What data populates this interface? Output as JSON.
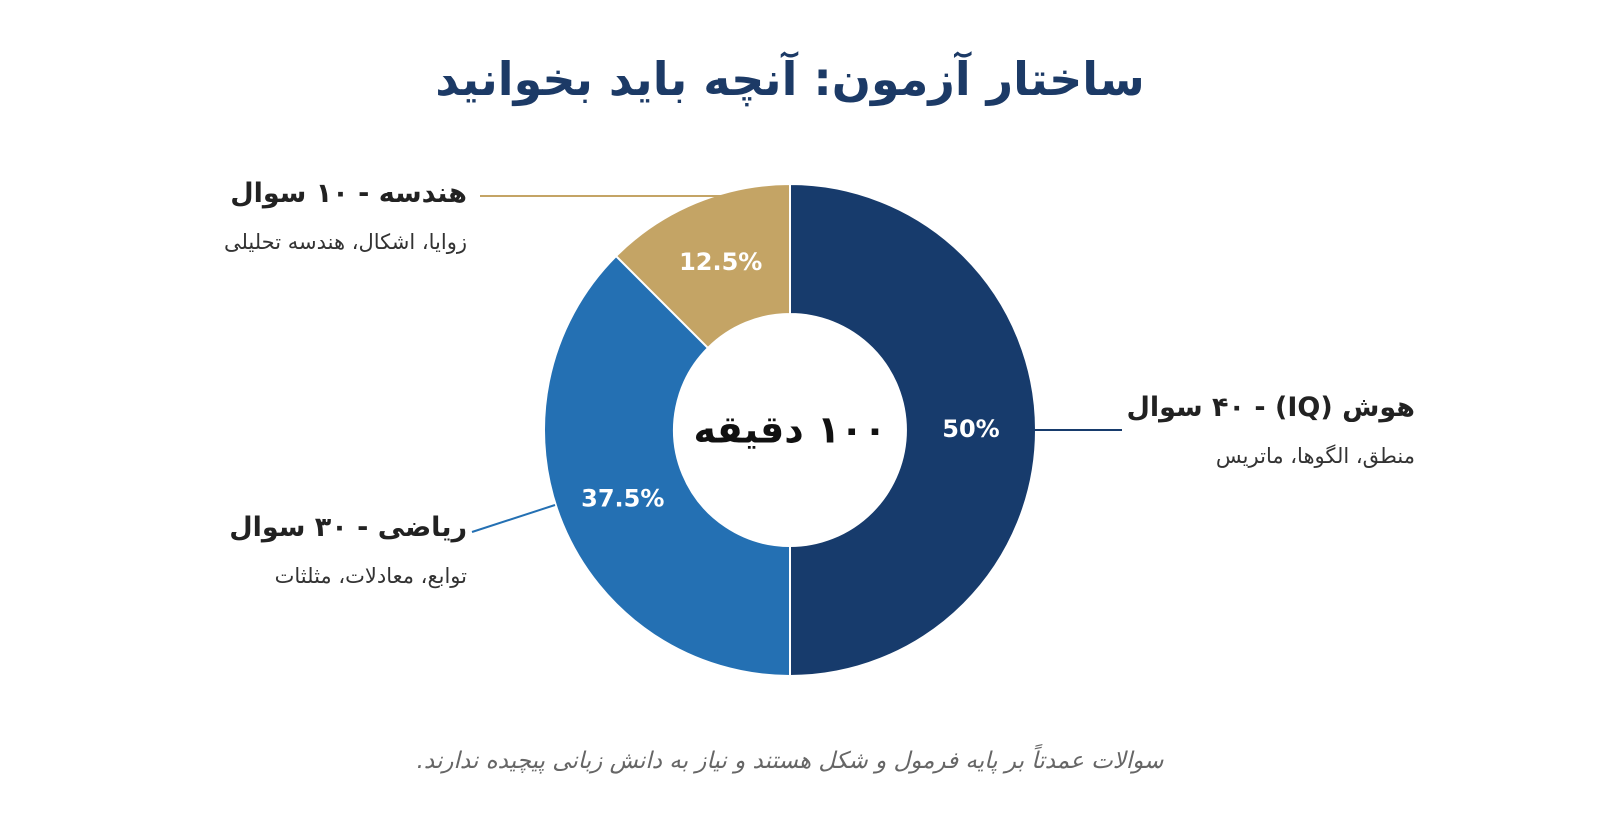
{
  "chart_data": {
    "type": "donut",
    "title": "ساختار آزمون: آنچه باید بخوانید",
    "center_label": "۱۰۰ دقیقه",
    "categories": [
      "هوش (IQ) - ۴۰ سوال",
      "ریاضی - ۳۰ سوال",
      "هندسه - ۱۰ سوال"
    ],
    "descriptions": [
      "منطق، الگوها، ماتریس",
      "توابع، معادلات، مثلثات",
      "زوایا، اشکال، هندسه تحلیلی"
    ],
    "values": [
      50,
      37.5,
      12.5
    ],
    "value_labels": [
      "50%",
      "37.5%",
      "12.5%"
    ],
    "colors": [
      "#173b6c",
      "#2470b3",
      "#c4a465"
    ],
    "footnote": "سوالات عمدتاً بر پایه فرمول و شکل هستند و نیاز به دانش زبانی پیچیده ندارند."
  }
}
